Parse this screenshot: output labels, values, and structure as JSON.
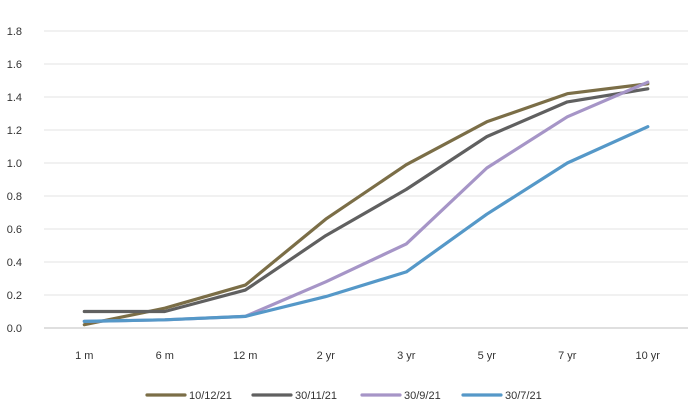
{
  "chart_data": {
    "type": "line",
    "title": "",
    "xlabel": "",
    "ylabel": "",
    "categories": [
      "1 m",
      "6 m",
      "12 m",
      "2 yr",
      "3 yr",
      "5 yr",
      "7 yr",
      "10 yr"
    ],
    "ylim": [
      0,
      1.8
    ],
    "yticks": [
      "0.0",
      "0.2",
      "0.4",
      "0.6",
      "0.8",
      "1.0",
      "1.2",
      "1.4",
      "1.6",
      "1.8"
    ],
    "grid": true,
    "legend_position": "bottom",
    "series": [
      {
        "name": "10/12/21",
        "color": "#7b6e47",
        "values": [
          0.02,
          0.12,
          0.26,
          0.66,
          0.99,
          1.25,
          1.42,
          1.48
        ]
      },
      {
        "name": "30/11/21",
        "color": "#606060",
        "values": [
          0.1,
          0.1,
          0.23,
          0.56,
          0.84,
          1.16,
          1.37,
          1.45
        ]
      },
      {
        "name": "30/9/21",
        "color": "#a695c7",
        "values": [
          0.04,
          0.05,
          0.07,
          0.28,
          0.51,
          0.97,
          1.28,
          1.49
        ]
      },
      {
        "name": "30/7/21",
        "color": "#5598c8",
        "values": [
          0.04,
          0.05,
          0.07,
          0.19,
          0.34,
          0.69,
          1.0,
          1.22
        ]
      }
    ]
  }
}
